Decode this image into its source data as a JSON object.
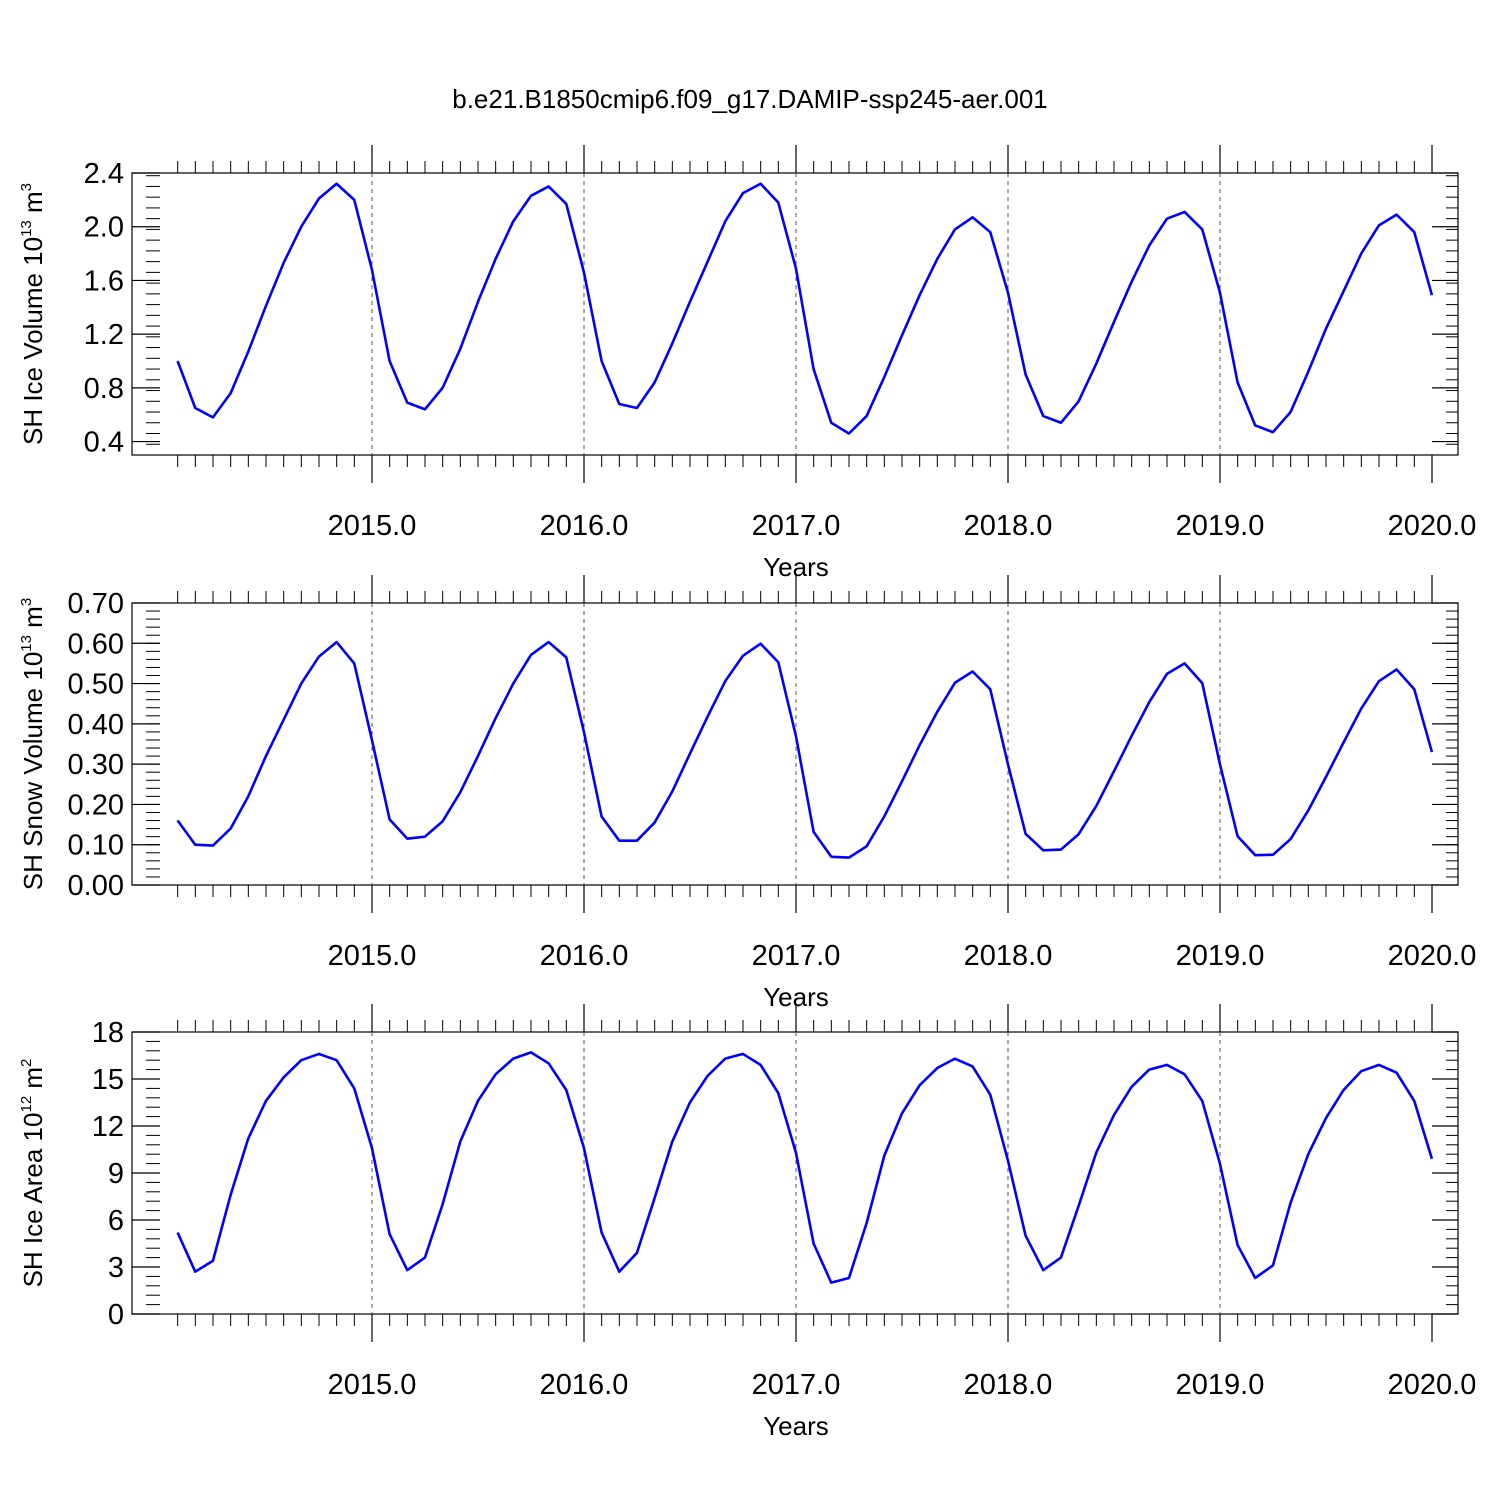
{
  "title": "b.e21.B1850cmip6.f09_g17.DAMIP-ssp245-aer.001",
  "colors": {
    "series": "#0000ff",
    "axis": "#000000",
    "grid": "#555555"
  },
  "chart_data": [
    {
      "type": "line",
      "ylabel": {
        "text": "SH Ice Volume 10",
        "exp": "13",
        "unit": " m",
        "unitexp": "3"
      },
      "xlabel": "Years",
      "xlim": [
        2014.0,
        2020.0
      ],
      "ylim": [
        0.3,
        2.4
      ],
      "xticks": [
        "2015.0",
        "2016.0",
        "2017.0",
        "2018.0",
        "2019.0",
        "2020.0"
      ],
      "yticks": [
        "0.4",
        "0.8",
        "1.2",
        "1.6",
        "2.0",
        "2.4"
      ],
      "series": [
        {
          "values": [
            1.0,
            0.65,
            0.58,
            0.76,
            1.07,
            1.41,
            1.73,
            2.0,
            2.21,
            2.32,
            2.2,
            1.68,
            1.0,
            0.69,
            0.64,
            0.8,
            1.09,
            1.44,
            1.76,
            2.04,
            2.23,
            2.3,
            2.17,
            1.66,
            1.0,
            0.68,
            0.65,
            0.84,
            1.13,
            1.44,
            1.74,
            2.04,
            2.25,
            2.32,
            2.18,
            1.69,
            0.94,
            0.54,
            0.46,
            0.59,
            0.88,
            1.19,
            1.49,
            1.76,
            1.98,
            2.07,
            1.96,
            1.51,
            0.9,
            0.59,
            0.54,
            0.7,
            0.98,
            1.29,
            1.59,
            1.86,
            2.06,
            2.11,
            1.98,
            1.51,
            0.84,
            0.52,
            0.47,
            0.62,
            0.92,
            1.24,
            1.52,
            1.8,
            2.01,
            2.09,
            1.96,
            1.49
          ]
        }
      ]
    },
    {
      "type": "line",
      "ylabel": {
        "text": "SH Snow Volume 10",
        "exp": "13",
        "unit": " m",
        "unitexp": "3"
      },
      "xlabel": "Years",
      "xlim": [
        2014.0,
        2020.0
      ],
      "ylim": [
        0.0,
        0.7
      ],
      "xticks": [
        "2015.0",
        "2016.0",
        "2017.0",
        "2018.0",
        "2019.0",
        "2020.0"
      ],
      "yticks": [
        "0.00",
        "0.10",
        "0.20",
        "0.30",
        "0.40",
        "0.50",
        "0.60",
        "0.70"
      ],
      "series": [
        {
          "values": [
            0.16,
            0.1,
            0.098,
            0.14,
            0.22,
            0.32,
            0.41,
            0.5,
            0.567,
            0.603,
            0.55,
            0.36,
            0.163,
            0.115,
            0.12,
            0.158,
            0.23,
            0.32,
            0.414,
            0.5,
            0.571,
            0.603,
            0.565,
            0.38,
            0.17,
            0.11,
            0.11,
            0.155,
            0.232,
            0.326,
            0.418,
            0.506,
            0.569,
            0.599,
            0.553,
            0.37,
            0.132,
            0.07,
            0.068,
            0.096,
            0.17,
            0.257,
            0.347,
            0.43,
            0.502,
            0.53,
            0.486,
            0.3,
            0.127,
            0.086,
            0.088,
            0.126,
            0.196,
            0.282,
            0.37,
            0.454,
            0.524,
            0.55,
            0.501,
            0.3,
            0.121,
            0.074,
            0.075,
            0.114,
            0.185,
            0.268,
            0.354,
            0.438,
            0.506,
            0.535,
            0.486,
            0.33
          ]
        }
      ]
    },
    {
      "type": "line",
      "ylabel": {
        "text": "SH Ice Area 10",
        "exp": "12",
        "unit": " m",
        "unitexp": "2"
      },
      "xlabel": "Years",
      "xlim": [
        2014.0,
        2020.0
      ],
      "ylim": [
        0,
        18
      ],
      "xticks": [
        "2015.0",
        "2016.0",
        "2017.0",
        "2018.0",
        "2019.0",
        "2020.0"
      ],
      "yticks": [
        "0",
        "3",
        "6",
        "9",
        "12",
        "15",
        "18"
      ],
      "series": [
        {
          "values": [
            5.2,
            2.7,
            3.4,
            7.6,
            11.2,
            13.6,
            15.1,
            16.2,
            16.6,
            16.2,
            14.4,
            10.6,
            5.1,
            2.8,
            3.6,
            7.0,
            11.0,
            13.6,
            15.3,
            16.3,
            16.7,
            16.0,
            14.3,
            10.6,
            5.2,
            2.7,
            3.9,
            7.4,
            11.0,
            13.5,
            15.2,
            16.3,
            16.6,
            15.9,
            14.1,
            10.3,
            4.5,
            2.0,
            2.3,
            5.8,
            10.1,
            12.8,
            14.6,
            15.7,
            16.3,
            15.8,
            14.0,
            9.8,
            5.0,
            2.8,
            3.6,
            6.9,
            10.3,
            12.7,
            14.5,
            15.6,
            15.9,
            15.3,
            13.6,
            9.6,
            4.4,
            2.3,
            3.1,
            7.1,
            10.2,
            12.5,
            14.3,
            15.5,
            15.9,
            15.4,
            13.6,
            9.9
          ]
        }
      ]
    }
  ]
}
